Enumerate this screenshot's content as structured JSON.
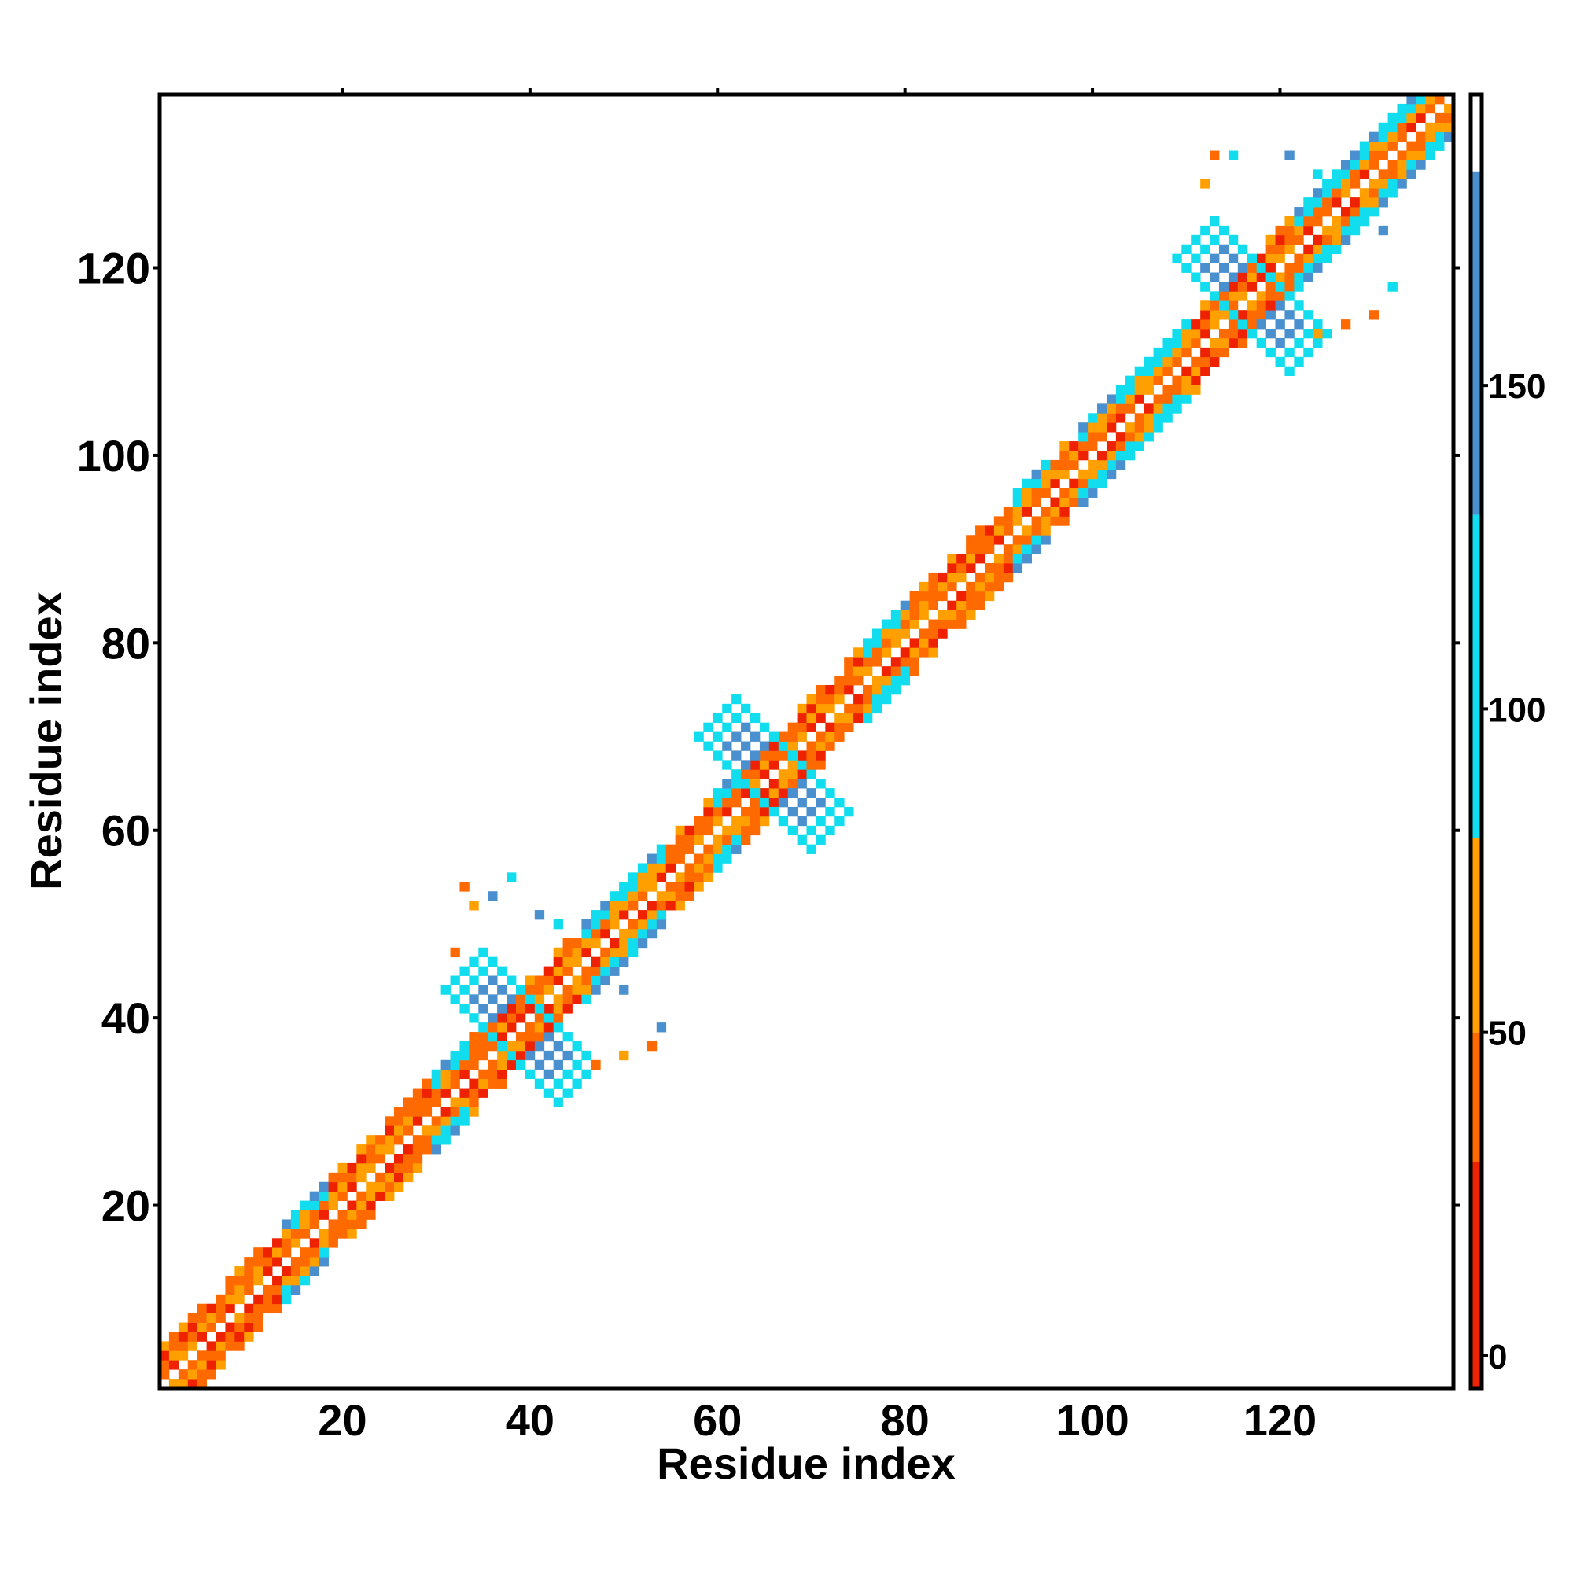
{
  "chart_data": {
    "type": "heatmap",
    "title": "",
    "xlabel": "Residue index",
    "ylabel": "Residue index",
    "xlim": [
      1,
      138
    ],
    "ylim": [
      1,
      138
    ],
    "x_ticks": [
      20,
      40,
      60,
      80,
      100,
      120
    ],
    "y_ticks": [
      20,
      40,
      60,
      80,
      100,
      120
    ],
    "x_tick_labels": [
      "20",
      "40",
      "60",
      "80",
      "100",
      "120"
    ],
    "y_tick_labels": [
      "20",
      "40",
      "60",
      "80",
      "100",
      "120"
    ],
    "grid": false,
    "legend": "colorbar at right",
    "colorbar": {
      "range": [
        -5,
        195
      ],
      "ticks": [
        0,
        50,
        100,
        150
      ],
      "tick_labels": [
        "0",
        "50",
        "100",
        "150"
      ],
      "bands": [
        {
          "from": -5,
          "to": 30,
          "color": "#ee2200"
        },
        {
          "from": 30,
          "to": 50,
          "color": "#ff6a00"
        },
        {
          "from": 50,
          "to": 80,
          "color": "#ffa000"
        },
        {
          "from": 80,
          "to": 130,
          "color": "#11ddee"
        },
        {
          "from": 130,
          "to": 183,
          "color": "#4a90cf"
        },
        {
          "from": 183,
          "to": 195,
          "color": "#ffffff"
        }
      ]
    },
    "structure": {
      "diagonal_band": {
        "from": 1,
        "to": 138,
        "half_width": 4
      },
      "contact_crosses": [
        {
          "center": [
            39,
            39
          ],
          "arm": 6,
          "color": "#4a90cf"
        },
        {
          "center": [
            66,
            66
          ],
          "arm": 6,
          "color": "#4a90cf"
        },
        {
          "center": [
            117,
            117
          ],
          "arm": 6,
          "color": "#4a90cf"
        }
      ],
      "cyan_segments": [
        [
          14,
          18
        ],
        [
          30,
          33
        ],
        [
          46,
          54
        ],
        [
          60,
          62
        ],
        [
          76,
          80
        ],
        [
          92,
          95
        ],
        [
          99,
          110
        ],
        [
          122,
          138
        ]
      ],
      "scattered_cells": [
        [
          33,
          54,
          "#ff6a00"
        ],
        [
          34,
          52,
          "#ffa000"
        ],
        [
          32,
          47,
          "#ff6a00"
        ],
        [
          36,
          53,
          "#4a90cf"
        ],
        [
          38,
          55,
          "#11ddee"
        ],
        [
          41,
          51,
          "#4a90cf"
        ],
        [
          43,
          50,
          "#11ddee"
        ],
        [
          50,
          43,
          "#4a90cf"
        ],
        [
          54,
          39,
          "#4a90cf"
        ],
        [
          53,
          37,
          "#ff6a00"
        ],
        [
          50,
          36,
          "#ffa000"
        ],
        [
          47,
          35,
          "#ff6a00"
        ],
        [
          113,
          132,
          "#ff6a00"
        ],
        [
          115,
          132,
          "#11ddee"
        ],
        [
          112,
          129,
          "#ffa000"
        ],
        [
          121,
          132,
          "#4a90cf"
        ],
        [
          124,
          130,
          "#11ddee"
        ],
        [
          131,
          124,
          "#4a90cf"
        ],
        [
          132,
          118,
          "#11ddee"
        ],
        [
          130,
          115,
          "#ff6a00"
        ],
        [
          127,
          114,
          "#ff6a00"
        ],
        [
          124,
          113,
          "#ffa000"
        ]
      ]
    }
  }
}
